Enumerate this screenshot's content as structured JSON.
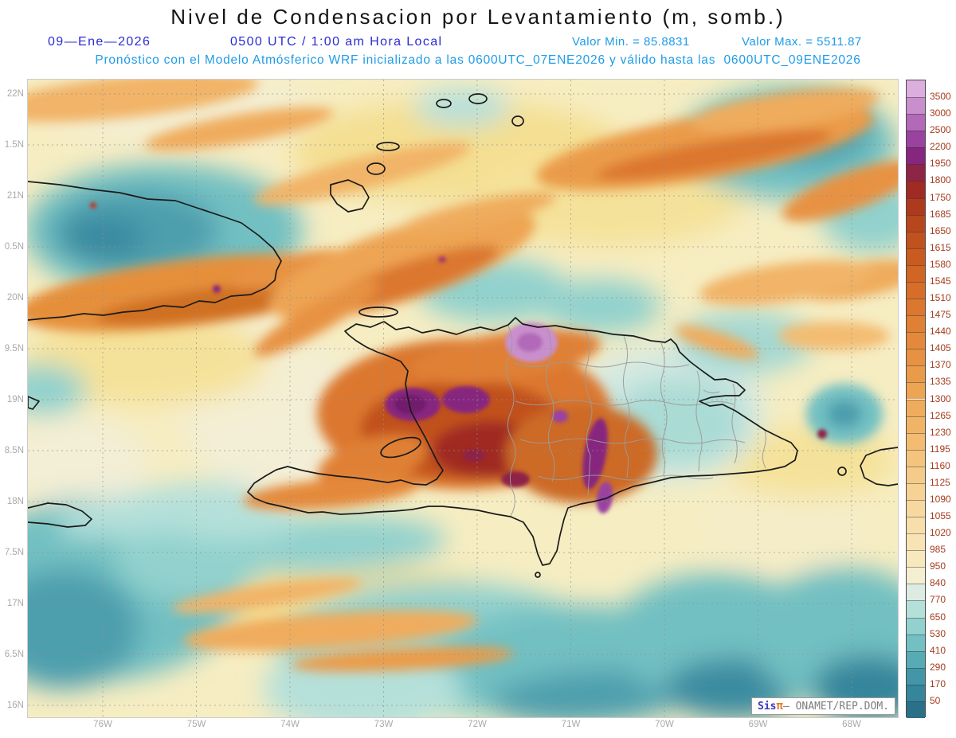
{
  "title": "Nivel de Condensacion por Levantamiento (m, somb.)",
  "header": {
    "date": "09—Ene—2026",
    "time": "0500 UTC / 1:00 am Hora Local",
    "min": "Valor Min. = 85.8831",
    "max": "Valor Max. = 5511.87",
    "forecast": "Pronóstico con el Modelo Atmósferico WRF inicializado a las 0600UTC_07ENE2026 y válido hasta las  0600UTC_09ENE2026"
  },
  "axes": {
    "y_ticks": [
      "22N",
      "1.5N",
      "21N",
      "0.5N",
      "20N",
      "9.5N",
      "19N",
      "8.5N",
      "18N",
      "7.5N",
      "17N",
      "6.5N",
      "16N"
    ],
    "x_ticks": [
      "76W",
      "75W",
      "74W",
      "73W",
      "72W",
      "71W",
      "70W",
      "69W",
      "68W"
    ]
  },
  "chart_data": {
    "type": "heatmap",
    "title": "Nivel de Condensacion por Levantamiento (m, somb.)",
    "units": "m",
    "value_min": 85.8831,
    "value_max": 5511.87,
    "legend_position": "right",
    "grid": "dotted",
    "x_ticks": [
      "76W",
      "75W",
      "74W",
      "73W",
      "72W",
      "71W",
      "70W",
      "69W",
      "68W"
    ],
    "y_ticks": [
      "22N",
      "1.5N",
      "21N",
      "0.5N",
      "20N",
      "9.5N",
      "19N",
      "8.5N",
      "18N",
      "7.5N",
      "17N",
      "6.5N",
      "16N"
    ],
    "colorbar_levels": [
      3500,
      3000,
      2500,
      2200,
      1950,
      1800,
      1750,
      1685,
      1650,
      1615,
      1580,
      1545,
      1510,
      1475,
      1440,
      1405,
      1370,
      1335,
      1300,
      1265,
      1230,
      1195,
      1160,
      1125,
      1090,
      1055,
      1020,
      985,
      950,
      840,
      770,
      650,
      530,
      410,
      290,
      170,
      50
    ],
    "colorbar_colors": [
      "#dcaede",
      "#c98fcd",
      "#b269b8",
      "#9a42a0",
      "#87267f",
      "#8e2446",
      "#a02a24",
      "#ae3a1e",
      "#b8461d",
      "#c1511e",
      "#c95b20",
      "#d06524",
      "#d66e29",
      "#db772e",
      "#e08034",
      "#e4893b",
      "#e79242",
      "#ea9b4a",
      "#eda453",
      "#efac5d",
      "#f1b467",
      "#f3bc72",
      "#f4c47d",
      "#f5cb89",
      "#f6d294",
      "#f7d89f",
      "#f7deaa",
      "#f8e3b4",
      "#f8e8be",
      "#f6eed0",
      "#dcece2",
      "#b5e0da",
      "#92d1cd",
      "#72c0c2",
      "#57abb5",
      "#4396a7",
      "#35859b",
      "#2a7089"
    ]
  },
  "watermark": {
    "brand": "Sis",
    "pi": "π",
    "rest": "— ONAMET/REP.DOM."
  },
  "colors": {
    "header_blue": "#2b2bd4",
    "header_cyan": "#1f9ce8",
    "colorbar_label": "#a63c1e",
    "axis_label": "#a9a9a9"
  }
}
